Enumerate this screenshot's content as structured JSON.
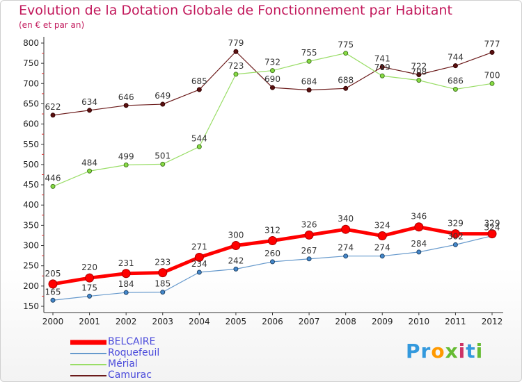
{
  "header": {
    "title": "Evolution de la Dotation Globale de Fonctionnement par Habitant",
    "subtitle": "(en € et par an)"
  },
  "chart_data": {
    "type": "line",
    "title": "Evolution de la Dotation Globale de Fonctionnement par Habitant",
    "subtitle": "(en € et par an)",
    "xlabel": "",
    "ylabel": "",
    "categories": [
      "2000",
      "2001",
      "2002",
      "2003",
      "2004",
      "2005",
      "2006",
      "2007",
      "2008",
      "2009",
      "2010",
      "2011",
      "2012"
    ],
    "ylim": [
      150,
      800
    ],
    "yticks": [
      150,
      200,
      250,
      300,
      350,
      400,
      450,
      500,
      550,
      600,
      650,
      700,
      750,
      800
    ],
    "grid": false,
    "legend_position": "bottom-left",
    "series": [
      {
        "name": "BELCAIRE",
        "color": "#ff0000",
        "values": [
          205,
          220,
          231,
          233,
          271,
          300,
          312,
          326,
          340,
          324,
          346,
          329,
          329
        ]
      },
      {
        "name": "Roquefeuil",
        "color": "#6699cc",
        "values": [
          165,
          175,
          184,
          185,
          234,
          242,
          260,
          267,
          274,
          274,
          284,
          302,
          324
        ]
      },
      {
        "name": "Mérial",
        "color": "#99dd66",
        "values": [
          446,
          484,
          499,
          501,
          544,
          723,
          732,
          755,
          775,
          719,
          708,
          686,
          700
        ]
      },
      {
        "name": "Camurac",
        "color": "#6b1a1a",
        "values": [
          622,
          634,
          646,
          649,
          685,
          779,
          690,
          684,
          688,
          741,
          722,
          744,
          777
        ]
      }
    ]
  },
  "logo": {
    "letters": [
      "P",
      "r",
      "o",
      "x",
      "i",
      "t",
      "i"
    ],
    "colors": [
      "#3399dd",
      "#3399dd",
      "#ff9900",
      "#66bb33",
      "#cc3366",
      "#3399dd",
      "#66bb33"
    ]
  }
}
